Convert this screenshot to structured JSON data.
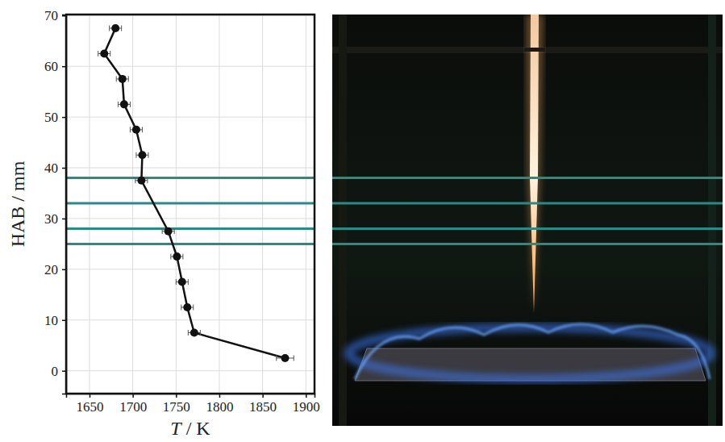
{
  "chart_data": {
    "type": "line",
    "x_label": "T / K",
    "y_label": "HAB / mm",
    "xlim": [
      1623,
      1910
    ],
    "ylim": [
      -4.5,
      70.2
    ],
    "xticks": [
      1650,
      1700,
      1750,
      1800,
      1850,
      1900
    ],
    "yticks": [
      0,
      10,
      20,
      30,
      40,
      50,
      60,
      70
    ],
    "grid": true,
    "series": [
      {
        "color": "#111111",
        "marker": "circle",
        "line_style": "solid",
        "x": [
          1876,
          1771,
          1763,
          1757,
          1751,
          1741,
          1710,
          1711,
          1704,
          1690,
          1688,
          1667,
          1680
        ],
        "x_error": [
          10,
          7,
          7,
          7,
          7,
          7,
          7,
          7,
          7,
          7,
          7,
          7,
          7
        ],
        "values": [
          2.5,
          7.5,
          12.5,
          17.5,
          22.5,
          27.5,
          37.5,
          42.5,
          47.5,
          52.5,
          57.5,
          62.5,
          67.5
        ]
      }
    ],
    "reference_lines": {
      "color": "#2a8a84",
      "values": [
        25,
        28,
        33,
        38
      ]
    }
  }
}
